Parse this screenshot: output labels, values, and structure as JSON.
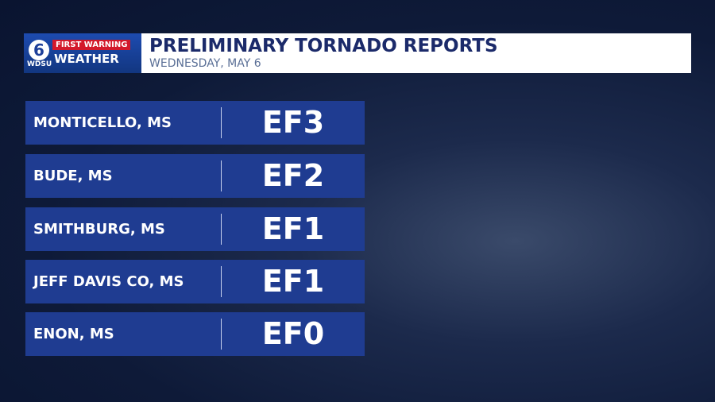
{
  "logo": {
    "channel": "6",
    "brand": "FIRST WARNING",
    "station": "WDSU",
    "product": "WEATHER"
  },
  "header": {
    "title": "PRELIMINARY TORNADO REPORTS",
    "subtitle": "WEDNESDAY, MAY 6"
  },
  "table": {
    "rows": [
      [
        "MONTICELLO, MS",
        "EF3"
      ],
      [
        "BUDE, MS",
        "EF2"
      ],
      [
        "SMITHBURG, MS",
        "EF1"
      ],
      [
        "JEFF DAVIS CO, MS",
        "EF1"
      ],
      [
        "ENON, MS",
        "EF0"
      ]
    ]
  }
}
